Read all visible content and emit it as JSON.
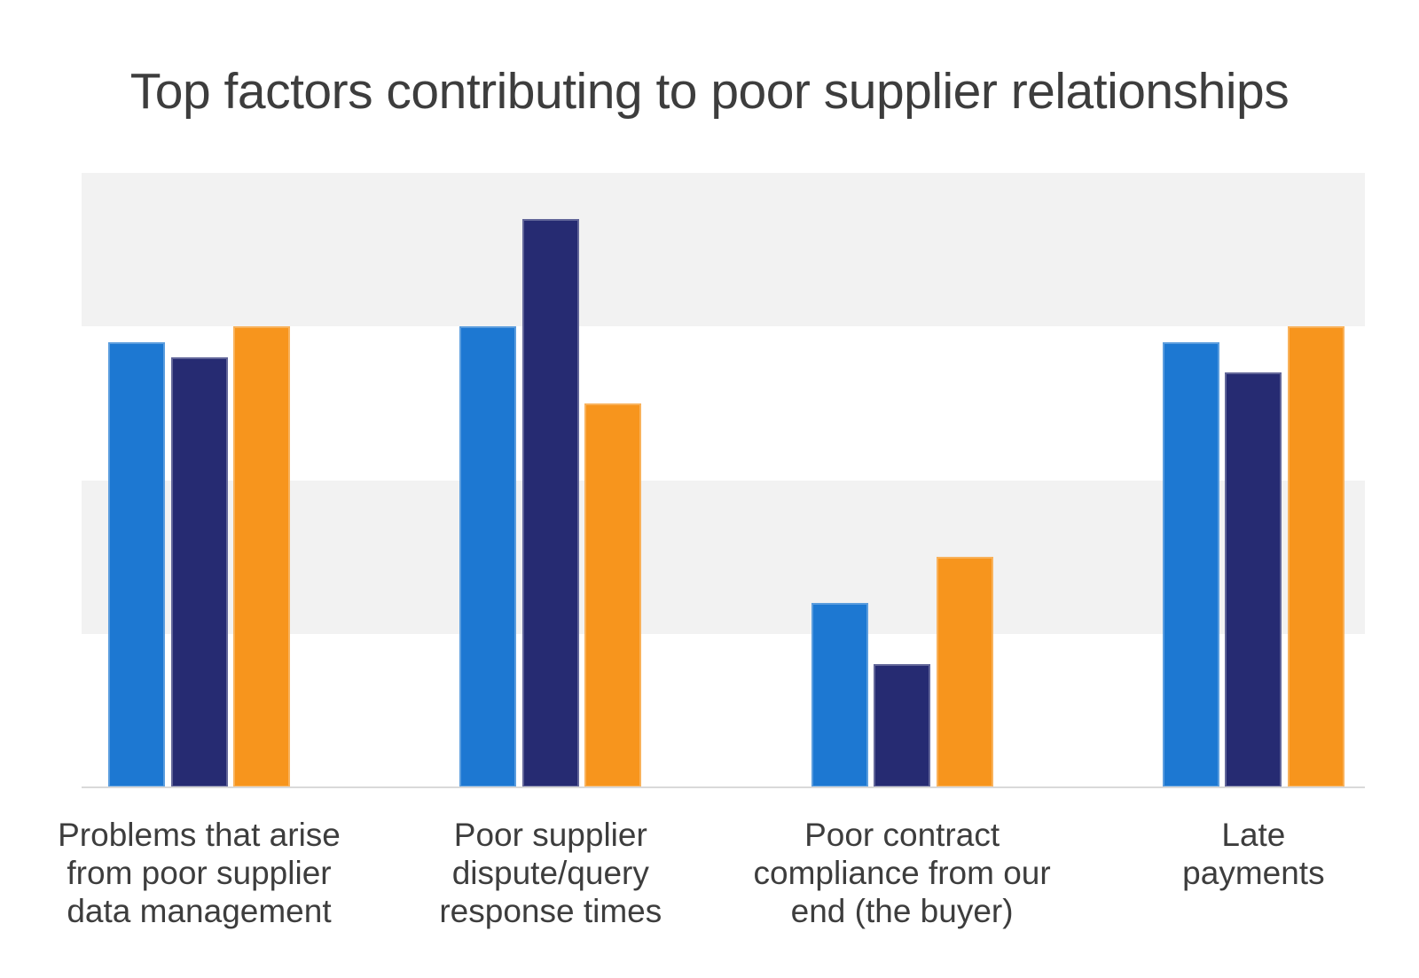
{
  "chart_data": {
    "type": "bar",
    "title": "Top factors contributing to poor supplier relationships",
    "categories": [
      "Problems that arise from poor supplier data management",
      "Poor supplier dispute/query response times",
      "Poor contract compliance from our end (the buyer)",
      "Late payments"
    ],
    "category_label_lines": [
      [
        "Problems that arise",
        "from poor supplier",
        "data management"
      ],
      [
        "Poor supplier",
        "dispute/query",
        "response times"
      ],
      [
        "Poor contract",
        "compliance from our",
        "end (the buyer)"
      ],
      [
        "Late",
        "payments"
      ]
    ],
    "series": [
      {
        "name": "series-blue",
        "color": "#1D78D2",
        "values": [
          29,
          30,
          12,
          29
        ]
      },
      {
        "name": "series-navy",
        "color": "#262B72",
        "values": [
          28,
          37,
          8,
          27
        ]
      },
      {
        "name": "series-orange",
        "color": "#F7951D",
        "values": [
          30,
          25,
          15,
          30
        ]
      }
    ],
    "ylim": [
      0,
      40
    ],
    "gridlines_every": 10,
    "grid_bands": [
      [
        30,
        40
      ],
      [
        10,
        20
      ]
    ],
    "band_color": "#F2F2F2",
    "baseline_color": "#D9D9D9",
    "title_color": "#3D3D3D",
    "label_color": "#3D3D3D",
    "legend": "none",
    "grid": "banded-horizontal",
    "y_axis_labels_visible": false,
    "data_labels_visible": false
  }
}
